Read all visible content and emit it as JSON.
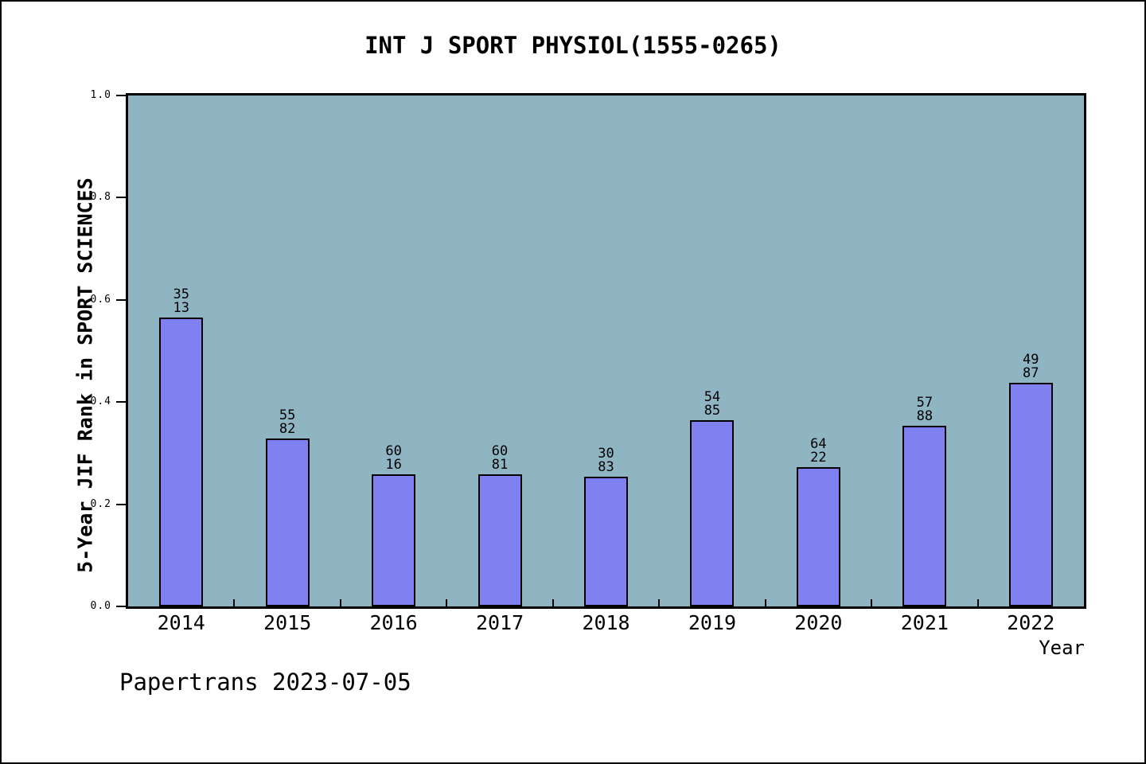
{
  "chart_data": {
    "type": "bar",
    "title": "INT J SPORT PHYSIOL(1555-0265)",
    "xlabel": "Year",
    "ylabel": "5-Year JIF Rank in SPORT SCIENCES",
    "categories": [
      "2014",
      "2015",
      "2016",
      "2017",
      "2018",
      "2019",
      "2020",
      "2021",
      "2022"
    ],
    "values": [
      0.565,
      0.329,
      0.259,
      0.259,
      0.254,
      0.365,
      0.273,
      0.354,
      0.438
    ],
    "bar_labels": [
      [
        "35",
        "13"
      ],
      [
        "55",
        "82"
      ],
      [
        "60",
        "16"
      ],
      [
        "60",
        "81"
      ],
      [
        "30",
        "83"
      ],
      [
        "54",
        "85"
      ],
      [
        "64",
        "22"
      ],
      [
        "57",
        "88"
      ],
      [
        "49",
        "87"
      ]
    ],
    "ylim": [
      0.0,
      1.0
    ],
    "yticks": [
      "0.0",
      "0.2",
      "0.4",
      "0.6",
      "0.8",
      "1.0"
    ],
    "legend": null,
    "grid": false,
    "colors": {
      "plot_background": "#8FB5C3",
      "bar_fill": "#8080F0",
      "bar_border": "#000000",
      "axis": "#000000",
      "text": "#000000"
    },
    "footer": "Papertrans 2023-07-05"
  }
}
